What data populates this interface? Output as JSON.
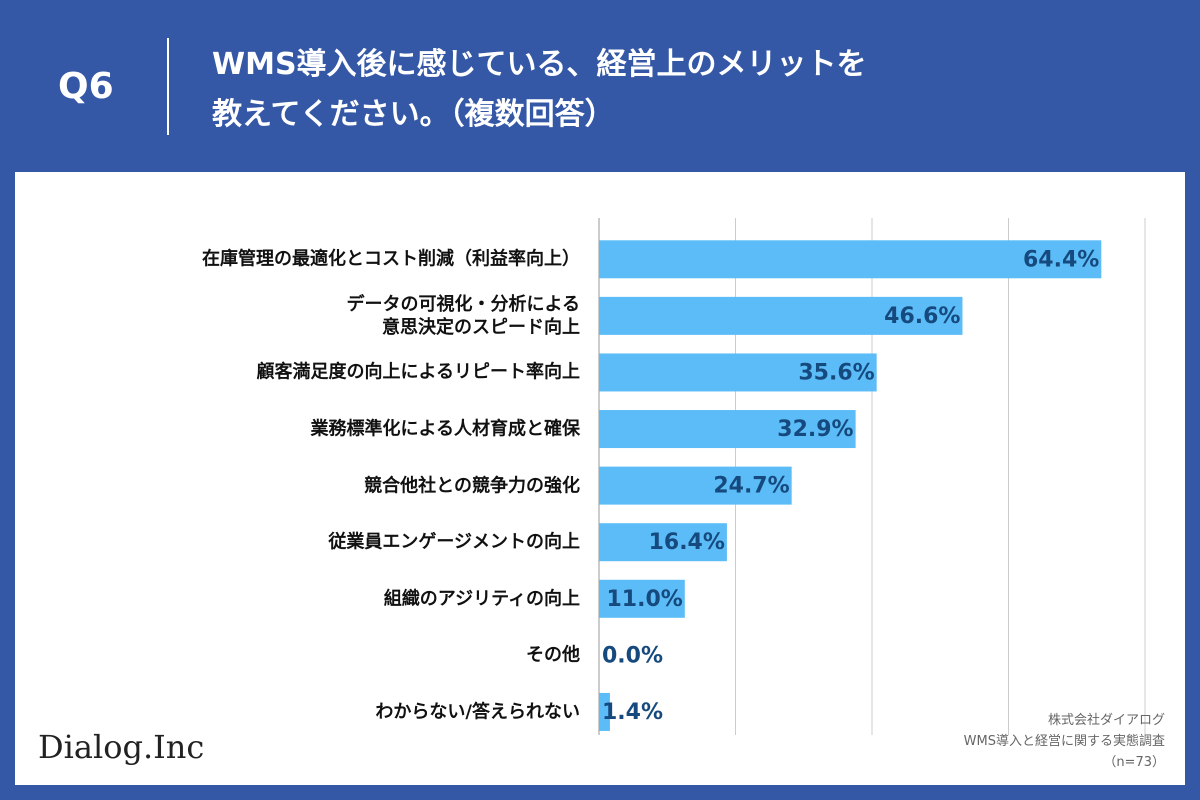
{
  "header": {
    "question": "Q6",
    "title": "WMS導入後に感じている、経営上のメリットを\n教えてください。（複数回答）"
  },
  "chart_data": {
    "type": "hbar",
    "categories": [
      "在庫管理の最適化とコスト削減（利益率向上）",
      "データの可視化・分析による\n意思決定のスピード向上",
      "顧客満足度の向上によるリピート率向上",
      "業務標準化による人材育成と確保",
      "競合他社との競争力の強化",
      "従業員エンゲージメントの向上",
      "組織のアジリティの向上",
      "その他",
      "わからない/答えられない"
    ],
    "values": [
      64.4,
      46.6,
      35.6,
      32.9,
      24.7,
      16.4,
      11.0,
      0.0,
      1.4
    ],
    "value_labels": [
      "64.4%",
      "46.6%",
      "35.6%",
      "32.9%",
      "24.7%",
      "16.4%",
      "11.0%",
      "0.0%",
      "1.4%"
    ],
    "color": "#5bbcf7",
    "xlim": [
      0,
      70
    ],
    "xticks": [
      0,
      17.5,
      35,
      52.5,
      70
    ],
    "tick_labels": false,
    "grid": true
  },
  "footer": {
    "logo": "Dialog.Inc",
    "source": [
      "株式会社ダイアログ",
      "WMS導入と経営に関する実態調査",
      "（n=73）"
    ]
  }
}
